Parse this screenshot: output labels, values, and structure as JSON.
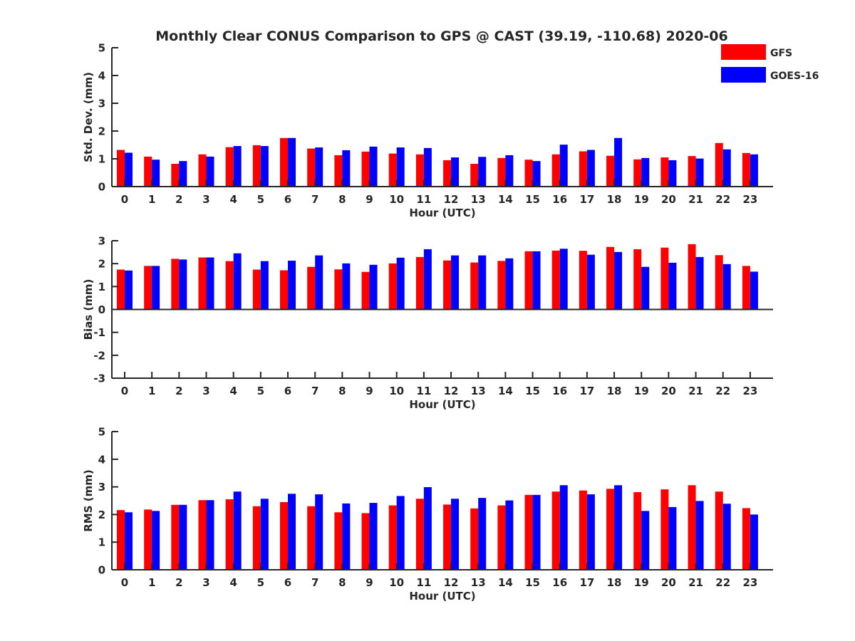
{
  "figure": {
    "title": "Monthly Clear CONUS Comparison to GPS @ CAST (39.19, -110.68) 2020-06"
  },
  "legend": {
    "location": "top-right",
    "entries": [
      {
        "label": "GFS",
        "color": "#ff0000"
      },
      {
        "label": "GOES-16",
        "color": "#0000ff"
      }
    ]
  },
  "chart_data": [
    {
      "type": "bar",
      "title": "Monthly Clear CONUS Comparison to GPS @ CAST (39.19, -110.68) 2020-06",
      "xlabel": "Hour (UTC)",
      "ylabel": "Std. Dev. (mm)",
      "ylim": [
        0,
        5
      ],
      "yticks": [
        0,
        1,
        2,
        3,
        4,
        5
      ],
      "categories": [
        "0",
        "1",
        "2",
        "3",
        "4",
        "5",
        "6",
        "7",
        "8",
        "9",
        "10",
        "11",
        "12",
        "13",
        "14",
        "15",
        "16",
        "17",
        "18",
        "19",
        "20",
        "21",
        "22",
        "23"
      ],
      "series": [
        {
          "name": "GFS",
          "color": "#ff0000",
          "values": [
            1.32,
            1.08,
            0.82,
            1.16,
            1.42,
            1.49,
            1.75,
            1.37,
            1.13,
            1.26,
            1.19,
            1.16,
            0.95,
            0.82,
            1.03,
            0.97,
            1.16,
            1.27,
            1.11,
            0.98,
            1.05,
            1.1,
            1.57,
            1.21
          ]
        },
        {
          "name": "GOES-16",
          "color": "#0000ff",
          "values": [
            1.22,
            0.97,
            0.92,
            1.08,
            1.46,
            1.46,
            1.75,
            1.41,
            1.31,
            1.44,
            1.41,
            1.39,
            1.05,
            1.07,
            1.13,
            0.92,
            1.51,
            1.32,
            1.75,
            1.03,
            0.95,
            1.01,
            1.34,
            1.16
          ]
        }
      ]
    },
    {
      "type": "bar",
      "xlabel": "Hour (UTC)",
      "ylabel": "Bias (mm)",
      "ylim": [
        -3,
        3
      ],
      "yticks": [
        -3,
        -2,
        -1,
        0,
        1,
        2,
        3
      ],
      "categories": [
        "0",
        "1",
        "2",
        "3",
        "4",
        "5",
        "6",
        "7",
        "8",
        "9",
        "10",
        "11",
        "12",
        "13",
        "14",
        "15",
        "16",
        "17",
        "18",
        "19",
        "20",
        "21",
        "22",
        "23"
      ],
      "series": [
        {
          "name": "GFS",
          "color": "#ff0000",
          "values": [
            1.74,
            1.9,
            2.21,
            2.27,
            2.11,
            1.74,
            1.71,
            1.86,
            1.75,
            1.64,
            2.01,
            2.29,
            2.14,
            2.05,
            2.12,
            2.54,
            2.57,
            2.56,
            2.73,
            2.63,
            2.7,
            2.85,
            2.37,
            1.9
          ]
        },
        {
          "name": "GOES-16",
          "color": "#0000ff",
          "values": [
            1.7,
            1.9,
            2.18,
            2.27,
            2.45,
            2.11,
            2.13,
            2.36,
            2.01,
            1.95,
            2.26,
            2.63,
            2.36,
            2.36,
            2.23,
            2.54,
            2.65,
            2.39,
            2.51,
            1.86,
            2.04,
            2.29,
            1.98,
            1.65
          ]
        }
      ]
    },
    {
      "type": "bar",
      "xlabel": "Hour (UTC)",
      "ylabel": "RMS (mm)",
      "ylim": [
        0,
        5
      ],
      "yticks": [
        0,
        1,
        2,
        3,
        4,
        5
      ],
      "categories": [
        "0",
        "1",
        "2",
        "3",
        "4",
        "5",
        "6",
        "7",
        "8",
        "9",
        "10",
        "11",
        "12",
        "13",
        "14",
        "15",
        "16",
        "17",
        "18",
        "19",
        "20",
        "21",
        "22",
        "23"
      ],
      "series": [
        {
          "name": "GFS",
          "color": "#ff0000",
          "values": [
            2.16,
            2.18,
            2.35,
            2.52,
            2.55,
            2.3,
            2.45,
            2.3,
            2.08,
            2.05,
            2.33,
            2.57,
            2.36,
            2.22,
            2.33,
            2.71,
            2.83,
            2.87,
            2.93,
            2.81,
            2.91,
            3.06,
            2.83,
            2.23
          ]
        },
        {
          "name": "GOES-16",
          "color": "#0000ff",
          "values": [
            2.08,
            2.13,
            2.35,
            2.52,
            2.83,
            2.57,
            2.75,
            2.73,
            2.4,
            2.42,
            2.67,
            2.99,
            2.57,
            2.6,
            2.51,
            2.71,
            3.06,
            2.73,
            3.06,
            2.13,
            2.27,
            2.49,
            2.39,
            2.0
          ]
        }
      ]
    }
  ]
}
